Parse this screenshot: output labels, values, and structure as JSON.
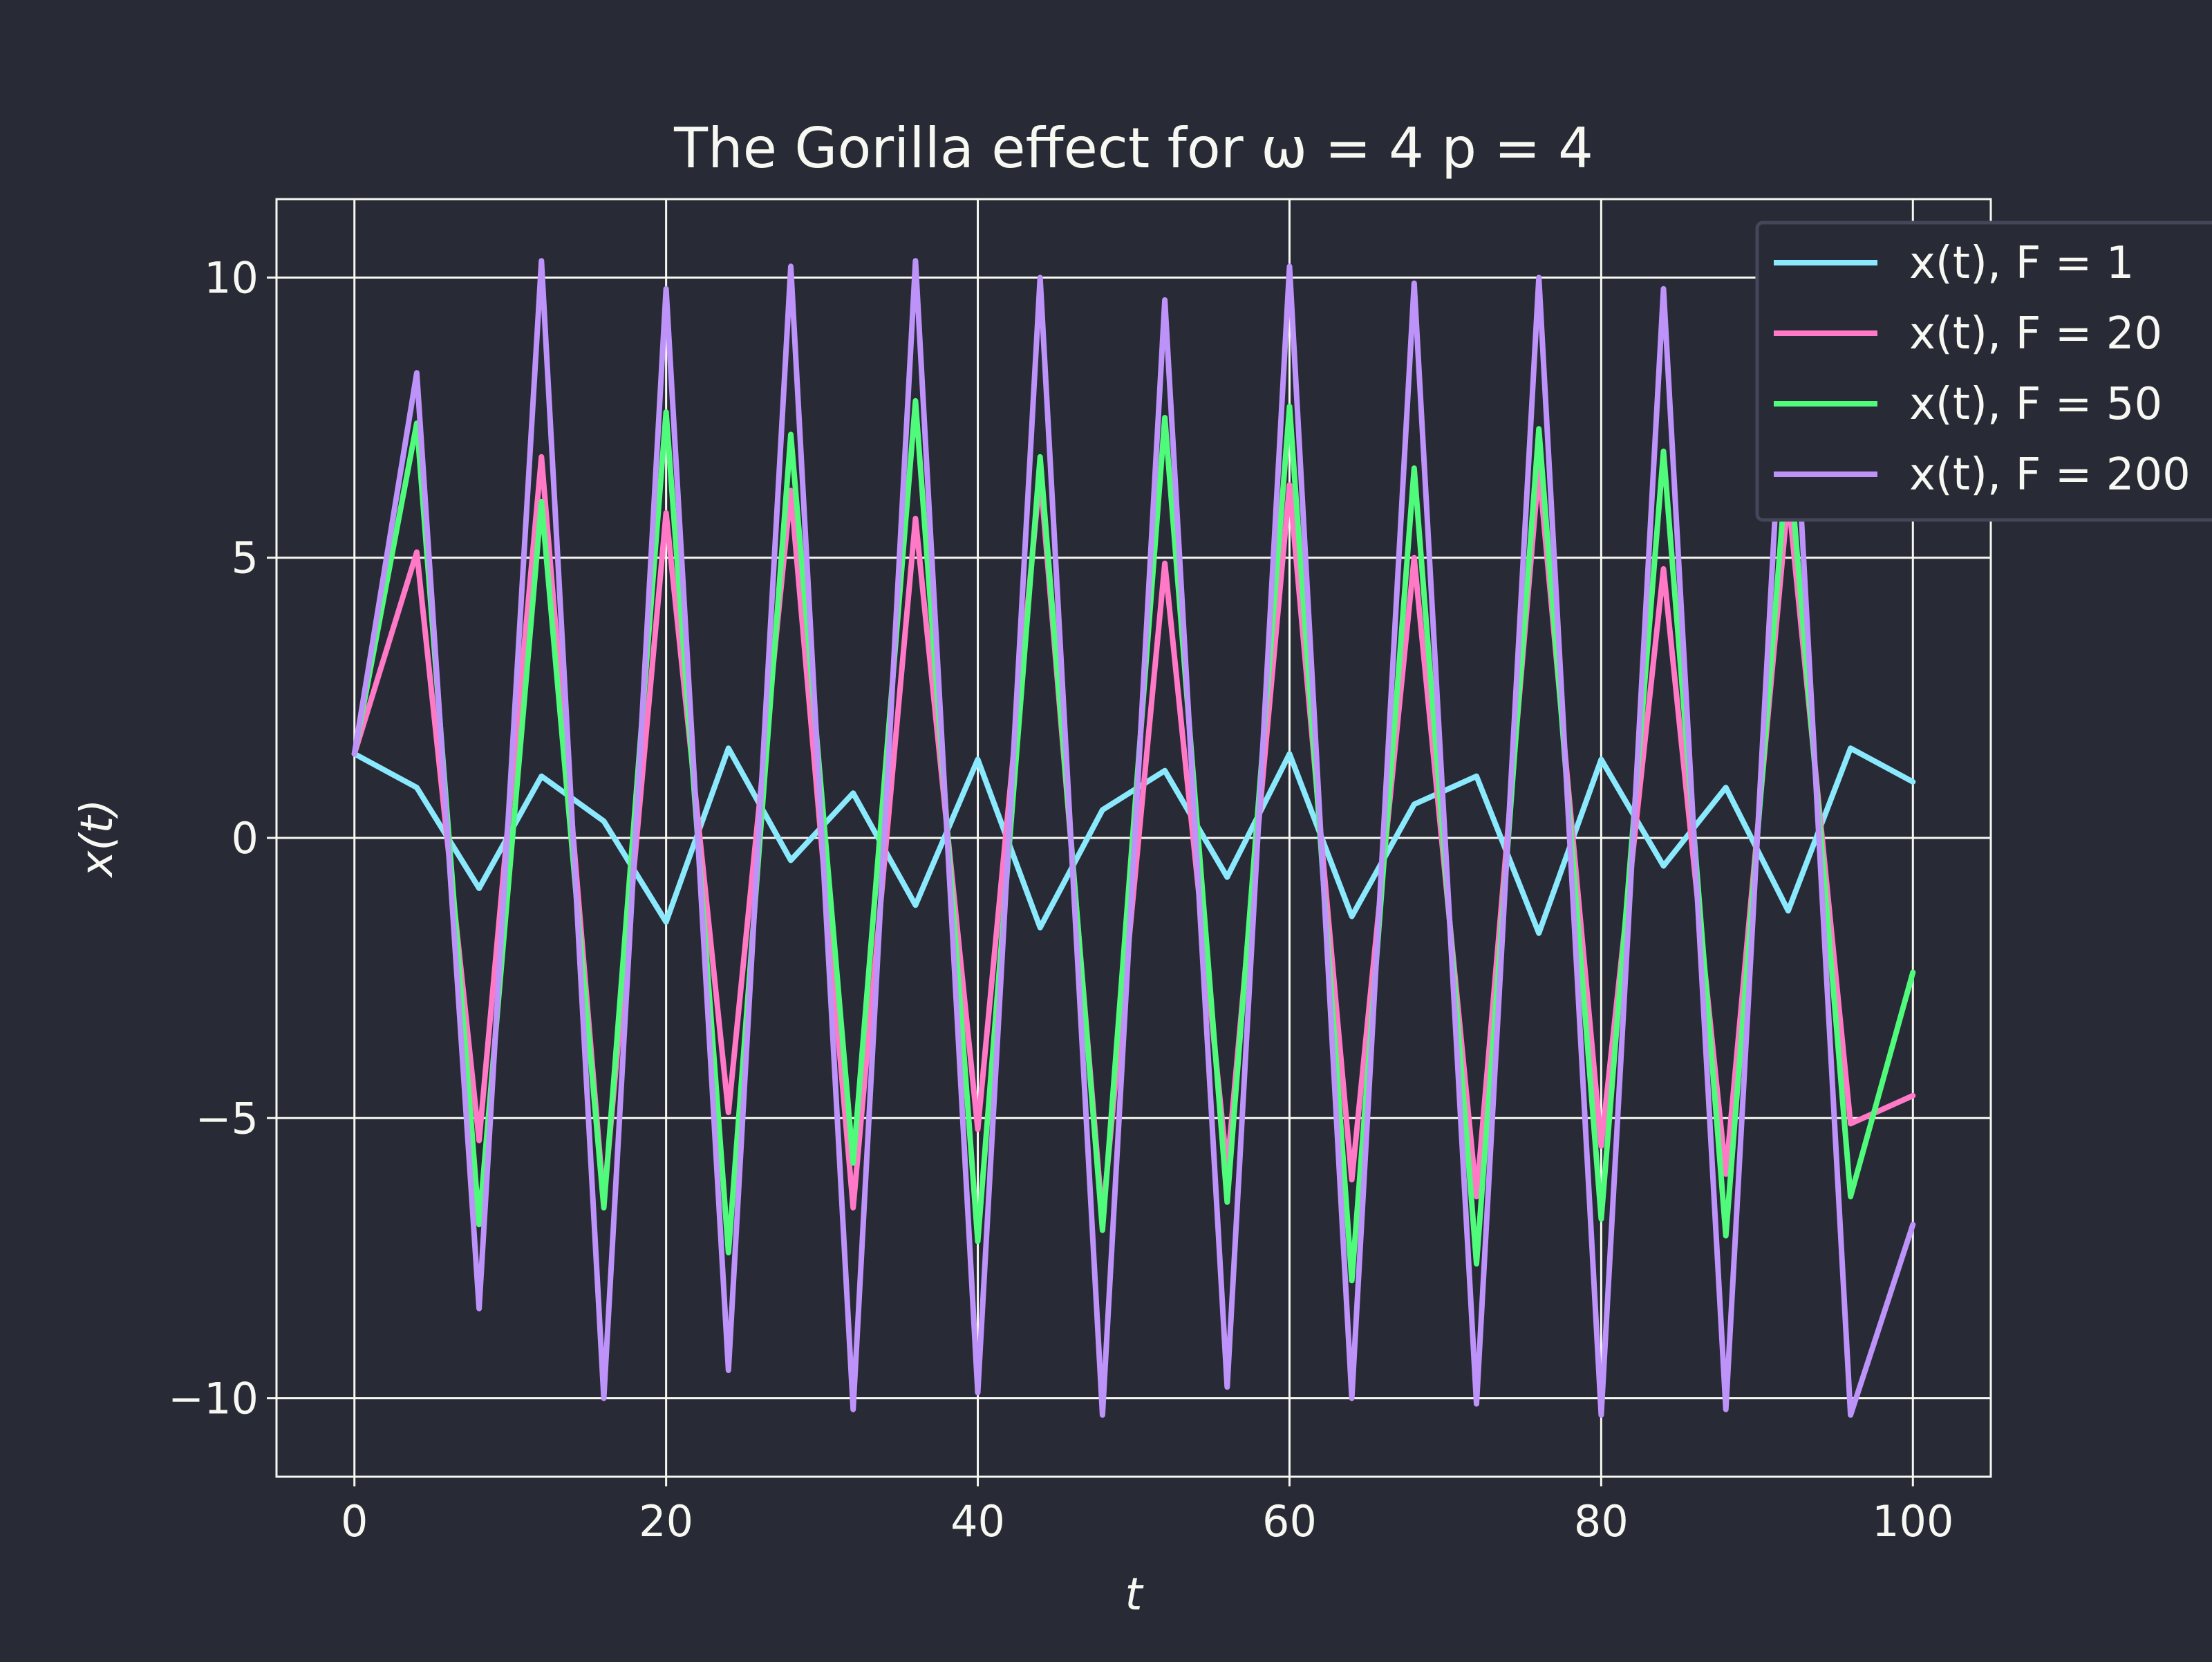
{
  "chart_data": {
    "type": "line",
    "title": "The Gorilla effect for ω = 4 p = 4",
    "xlabel": "t",
    "ylabel": "x(t)",
    "xlim": [
      -5,
      105
    ],
    "ylim": [
      -11.4,
      11.4
    ],
    "x_ticks": [
      0,
      20,
      40,
      60,
      80,
      100
    ],
    "x_tick_labels": [
      "0",
      "20",
      "40",
      "60",
      "80",
      "100"
    ],
    "y_ticks": [
      10,
      5,
      0,
      -5,
      -10
    ],
    "y_tick_labels": [
      "10",
      "5",
      "0",
      "−5",
      "−10"
    ],
    "grid": true,
    "legend_position": "top-right",
    "colors": {
      "background": "#282a36",
      "grid": "#f8f8f2",
      "text": "#f8f8f2"
    },
    "series": [
      {
        "name": "x(t), F = 1",
        "color": "#8be9fd",
        "x_range": [
          0,
          100
        ],
        "start": 1.5,
        "end": 1.0,
        "approx_amplitude": 1.7,
        "values": [
          1.5,
          0.9,
          -0.9,
          1.1,
          0.3,
          -1.5,
          1.6,
          -0.4,
          0.8,
          -1.2,
          1.4,
          -1.6,
          0.5,
          1.2,
          -0.7,
          1.5,
          -1.4,
          0.6,
          1.1,
          -1.7,
          1.4,
          -0.5,
          0.9,
          -1.3,
          1.6,
          1.0
        ]
      },
      {
        "name": "x(t), F = 20",
        "color": "#ff79c6",
        "x_range": [
          0,
          100
        ],
        "start": 1.5,
        "end": -4.6,
        "approx_amplitude": 6.9,
        "values": [
          1.5,
          5.1,
          -5.4,
          6.8,
          -6.5,
          5.8,
          -4.9,
          6.2,
          -6.6,
          5.7,
          -5.2,
          6.5,
          -6.8,
          4.9,
          -5.9,
          6.3,
          -6.1,
          5.0,
          -6.4,
          6.6,
          -5.5,
          4.8,
          -6.0,
          6.1,
          -5.1,
          -4.6
        ]
      },
      {
        "name": "x(t), F = 50",
        "color": "#50fa7b",
        "x_range": [
          0,
          100
        ],
        "start": 1.5,
        "end": -2.4,
        "approx_amplitude": 8.0,
        "values": [
          1.5,
          7.4,
          -6.9,
          6.0,
          -6.6,
          7.6,
          -7.4,
          7.2,
          -5.8,
          7.8,
          -7.2,
          6.8,
          -7.0,
          7.5,
          -6.5,
          7.7,
          -7.9,
          6.6,
          -7.6,
          7.3,
          -6.8,
          6.9,
          -7.1,
          7.0,
          -6.4,
          -2.4
        ]
      },
      {
        "name": "x(t), F = 200",
        "color": "#bd93f9",
        "x_range": [
          0,
          100
        ],
        "start": 1.5,
        "end": -6.9,
        "approx_amplitude": 10.3,
        "values": [
          1.5,
          8.3,
          -8.4,
          10.3,
          -10.0,
          9.8,
          -9.5,
          10.2,
          -10.2,
          10.3,
          -9.9,
          10.0,
          -10.3,
          9.6,
          -9.8,
          10.2,
          -10.0,
          9.9,
          -10.1,
          10.0,
          -10.3,
          9.8,
          -10.2,
          10.0,
          -10.3,
          -6.9
        ]
      }
    ]
  }
}
